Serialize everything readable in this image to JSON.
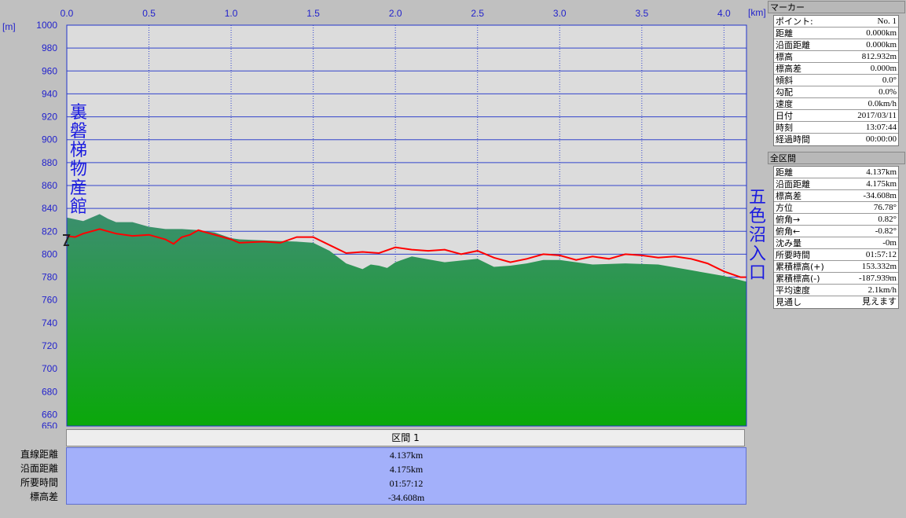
{
  "chart_data": {
    "type": "area",
    "xlabel_unit": "[km]",
    "ylabel_unit": "[m]",
    "xlim": [
      0,
      4.137
    ],
    "ylim": [
      650,
      1000
    ],
    "x_ticks": [
      "0.0",
      "0.5",
      "1.0",
      "1.5",
      "2.0",
      "2.5",
      "3.0",
      "3.5",
      "4.0"
    ],
    "y_ticks": [
      "1000",
      "980",
      "960",
      "940",
      "920",
      "900",
      "880",
      "860",
      "840",
      "820",
      "800",
      "780",
      "760",
      "740",
      "720",
      "700",
      "680",
      "660",
      "650"
    ],
    "start_label": "裏磐梯物産館",
    "end_label": "五色沼入口",
    "series": [
      {
        "x": [
          0.0,
          0.1,
          0.2,
          0.25,
          0.3,
          0.4,
          0.5,
          0.6,
          0.7,
          0.8,
          0.9,
          1.0,
          1.05,
          1.2,
          1.4,
          1.5,
          1.6,
          1.7,
          1.8,
          1.85,
          1.9,
          1.95,
          2.0,
          2.1,
          2.3,
          2.5,
          2.6,
          2.7,
          2.8,
          2.9,
          3.0,
          3.2,
          3.4,
          3.6,
          3.8,
          4.0,
          4.137
        ],
        "values": [
          832,
          829,
          835,
          831,
          828,
          828,
          824,
          822,
          822,
          821,
          819,
          814,
          813,
          812,
          811,
          810,
          803,
          792,
          787,
          791,
          790,
          788,
          793,
          798,
          793,
          796,
          789,
          790,
          792,
          795,
          795,
          791,
          792,
          791,
          786,
          781,
          776
        ]
      },
      {
        "x": [
          0.0,
          0.05,
          0.1,
          0.15,
          0.2,
          0.25,
          0.3,
          0.4,
          0.5,
          0.6,
          0.65,
          0.7,
          0.75,
          0.8,
          0.9,
          1.0,
          1.05,
          1.2,
          1.3,
          1.4,
          1.5,
          1.6,
          1.7,
          1.8,
          1.9,
          2.0,
          2.1,
          2.2,
          2.3,
          2.4,
          2.5,
          2.6,
          2.7,
          2.8,
          2.9,
          3.0,
          3.1,
          3.2,
          3.3,
          3.4,
          3.5,
          3.6,
          3.7,
          3.8,
          3.9,
          4.0,
          4.1,
          4.137
        ],
        "values": [
          816,
          815,
          818,
          820,
          822,
          820,
          818,
          816,
          817,
          813,
          809,
          815,
          817,
          821,
          817,
          813,
          810,
          811,
          810,
          815,
          815,
          808,
          801,
          802,
          801,
          806,
          804,
          803,
          804,
          800,
          803,
          797,
          793,
          796,
          800,
          799,
          795,
          798,
          796,
          800,
          799,
          797,
          798,
          796,
          792,
          785,
          780,
          780
        ]
      }
    ]
  },
  "section_header": "区間 1",
  "summary": [
    {
      "label": "直線距離",
      "value": "4.137km"
    },
    {
      "label": "沿面距離",
      "value": "4.175km"
    },
    {
      "label": "所要時間",
      "value": "01:57:12"
    },
    {
      "label": "標高差",
      "value": "-34.608m"
    }
  ],
  "marker_panel": {
    "title": "マーカー",
    "rows": [
      {
        "k": "ポイント:",
        "v": "No. 1"
      },
      {
        "k": "距離",
        "v": "0.000km"
      },
      {
        "k": "沿面距離",
        "v": "0.000km"
      },
      {
        "k": "標高",
        "v": "812.932m"
      },
      {
        "k": "標高差",
        "v": "0.000m"
      },
      {
        "k": "傾斜",
        "v": "0.0°"
      },
      {
        "k": "勾配",
        "v": "0.0%"
      },
      {
        "k": "速度",
        "v": "0.0km/h"
      },
      {
        "k": "日付",
        "v": "2017/03/11"
      },
      {
        "k": "時刻",
        "v": "13:07:44"
      },
      {
        "k": "経過時間",
        "v": "00:00:00"
      }
    ]
  },
  "total_panel": {
    "title": "全区間",
    "rows": [
      {
        "k": "距離",
        "v": "4.137km"
      },
      {
        "k": "沿面距離",
        "v": "4.175km"
      },
      {
        "k": "標高差",
        "v": "-34.608m"
      },
      {
        "k": "方位",
        "v": "76.78°"
      },
      {
        "k": "俯角→",
        "v": "0.82°"
      },
      {
        "k": "俯角←",
        "v": "-0.82°"
      },
      {
        "k": "沈み量",
        "v": "-0m"
      },
      {
        "k": "所要時間",
        "v": "01:57:12"
      },
      {
        "k": "累積標高(+)",
        "v": "153.332m"
      },
      {
        "k": "累積標高(-)",
        "v": "-187.939m"
      },
      {
        "k": "平均速度",
        "v": "2.1km/h"
      },
      {
        "k": "見通し",
        "v": "見えます"
      }
    ]
  }
}
